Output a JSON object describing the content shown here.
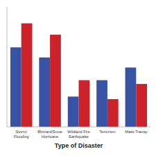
{
  "chart_data": {
    "type": "bar",
    "categories": [
      "Storm/\nFlooding",
      "Blizzard/Snow\nHurricane",
      "Wildland Fire\nEarthquake",
      "Terrorism",
      "Mass Transp"
    ],
    "series": [
      {
        "color": "#3953a4",
        "values": [
          63,
          55,
          24,
          37,
          47
        ]
      },
      {
        "color": "#cc2229",
        "values": [
          82,
          73,
          37,
          22,
          34
        ]
      }
    ],
    "xlabel": "Type of Disaster",
    "ylim": [
      0,
      95
    ],
    "yticks": [],
    "grid": false,
    "tick_labels": "x"
  }
}
